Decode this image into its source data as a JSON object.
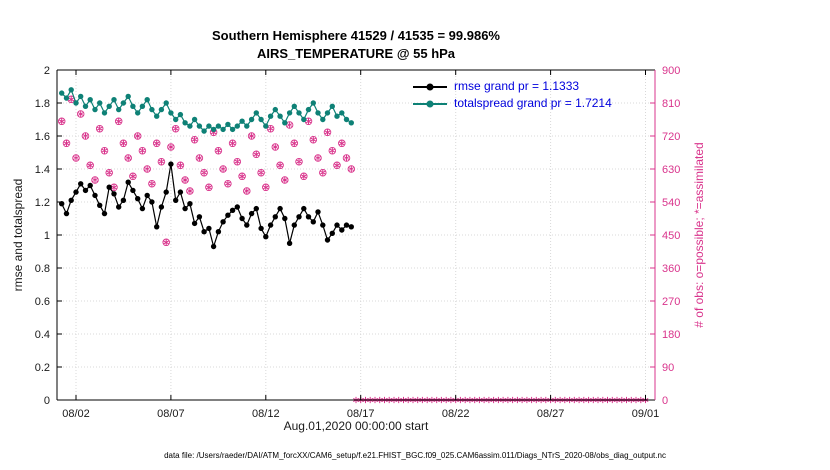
{
  "figure": {
    "title_line1": "Southern Hemisphere 41529 / 41535 = 99.986%",
    "title_line2": "AIRS_TEMPERATURE @ 55 hPa",
    "xlabel": "Aug.01,2020 00:00:00 start",
    "ylabel_left": "rmse and totalspread",
    "ylabel_right": "# of obs: o=possible; *=assimilated",
    "caption": "data file: /Users/raeder/DAI/ATM_forcXX/CAM6_setup/f.e21.FHIST_BGC.f09_025.CAM6assim.011/Diags_NTrS_2020-08/obs_diag_output.nc"
  },
  "legend": [
    {
      "label": "rmse grand pr = 1.1333",
      "color": "#000000"
    },
    {
      "label": "totalspread grand pr = 1.7214",
      "color": "#0e8176"
    }
  ],
  "colors": {
    "rmse": "#000000",
    "totalspread": "#0e8176",
    "obs": "#d9348c",
    "legend_text": "#0000dd",
    "axis_text": "#1a1a1a",
    "grid": "#d8d8d8"
  },
  "chart_data": {
    "type": "line",
    "title": "Southern Hemisphere 41529 / 41535 = 99.986%",
    "subtitle": "AIRS_TEMPERATURE @ 55 hPa",
    "xlabel": "Aug.01,2020 00:00:00 start",
    "ylabel_left": "rmse and totalspread",
    "ylabel_right": "# of obs: o=possible; *=assimilated",
    "x_domain_days": [
      0,
      31.5
    ],
    "x_ticks": [
      {
        "day": 1,
        "label": "08/02"
      },
      {
        "day": 6,
        "label": "08/07"
      },
      {
        "day": 11,
        "label": "08/12"
      },
      {
        "day": 16,
        "label": "08/17"
      },
      {
        "day": 21,
        "label": "08/22"
      },
      {
        "day": 26,
        "label": "08/27"
      },
      {
        "day": 31,
        "label": "09/01"
      }
    ],
    "y_left_range": [
      0,
      2
    ],
    "y_left_tick": 0.2,
    "y_right_range": [
      0,
      900
    ],
    "y_right_tick": 90,
    "grid": true,
    "t_start_day": 0.25,
    "t_step_day": 0.25,
    "series": [
      {
        "name": "rmse",
        "axis": "left",
        "grand_pr": 1.1333,
        "values": [
          1.19,
          1.13,
          1.21,
          1.26,
          1.31,
          1.27,
          1.3,
          1.24,
          1.18,
          1.13,
          1.29,
          1.25,
          1.17,
          1.21,
          1.32,
          1.27,
          1.22,
          1.16,
          1.24,
          1.2,
          1.05,
          1.17,
          1.26,
          1.43,
          1.21,
          1.26,
          1.16,
          1.19,
          1.07,
          1.11,
          1.02,
          1.04,
          0.93,
          1.02,
          1.08,
          1.12,
          1.15,
          1.17,
          1.1,
          1.06,
          1.13,
          1.16,
          1.04,
          0.99,
          1.06,
          1.11,
          1.16,
          1.1,
          0.95,
          1.06,
          1.11,
          1.16,
          1.11,
          1.08,
          1.14,
          1.06,
          0.97,
          1.01,
          1.06,
          1.03,
          1.06,
          1.05
        ]
      },
      {
        "name": "totalspread",
        "axis": "left",
        "grand_pr": 1.7214,
        "values": [
          1.86,
          1.83,
          1.88,
          1.8,
          1.84,
          1.78,
          1.82,
          1.76,
          1.8,
          1.74,
          1.78,
          1.82,
          1.76,
          1.8,
          1.84,
          1.78,
          1.74,
          1.78,
          1.82,
          1.76,
          1.72,
          1.76,
          1.8,
          1.74,
          1.7,
          1.73,
          1.68,
          1.66,
          1.7,
          1.66,
          1.63,
          1.66,
          1.64,
          1.66,
          1.64,
          1.67,
          1.64,
          1.66,
          1.69,
          1.66,
          1.7,
          1.74,
          1.7,
          1.66,
          1.72,
          1.76,
          1.72,
          1.68,
          1.74,
          1.78,
          1.74,
          1.7,
          1.76,
          1.8,
          1.74,
          1.7,
          1.74,
          1.78,
          1.72,
          1.74,
          1.7,
          1.68
        ]
      },
      {
        "name": "observations_assimilated",
        "axis": "right",
        "values": [
          760,
          700,
          820,
          660,
          780,
          720,
          640,
          600,
          740,
          680,
          620,
          580,
          760,
          700,
          660,
          610,
          720,
          680,
          630,
          590,
          700,
          650,
          430,
          690,
          740,
          640,
          600,
          570,
          710,
          660,
          620,
          580,
          730,
          680,
          630,
          590,
          700,
          650,
          610,
          570,
          720,
          670,
          620,
          580,
          740,
          690,
          640,
          600,
          750,
          700,
          650,
          610,
          760,
          710,
          660,
          620,
          730,
          680,
          640,
          700,
          660,
          630
        ]
      },
      {
        "name": "observations_zero_tail",
        "axis": "right",
        "t_range_days": {
          "start": 15.75,
          "end": 31.0,
          "step": 0.25
        },
        "value": 0
      }
    ]
  }
}
